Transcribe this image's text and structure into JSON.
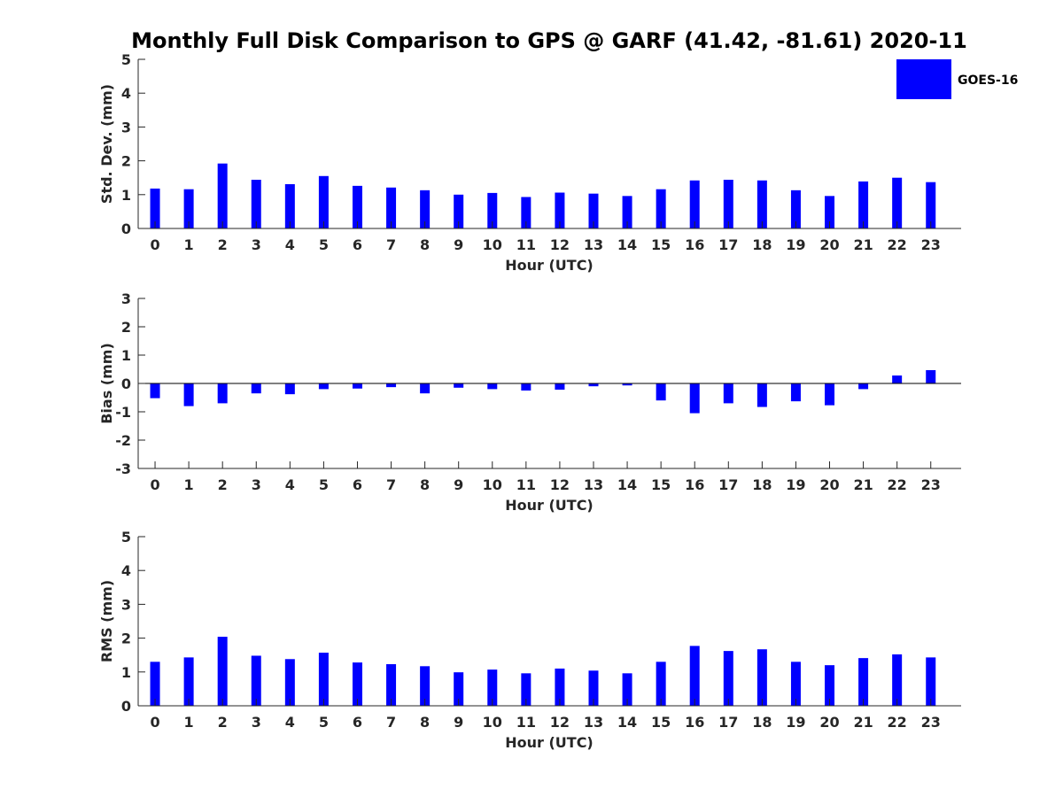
{
  "title": "Monthly Full Disk Comparison to GPS @ GARF (41.42, -81.61) 2020-11",
  "legend": {
    "label": "GOES-16",
    "color": "#0000ff"
  },
  "chart_data": [
    {
      "type": "bar",
      "title": "",
      "xlabel": "Hour (UTC)",
      "ylabel": "Std. Dev. (mm)",
      "categories": [
        "0",
        "1",
        "2",
        "3",
        "4",
        "5",
        "6",
        "7",
        "8",
        "9",
        "10",
        "11",
        "12",
        "13",
        "14",
        "15",
        "16",
        "17",
        "18",
        "19",
        "20",
        "21",
        "22",
        "23"
      ],
      "ylim": [
        0,
        5
      ],
      "yticks": [
        0,
        1,
        2,
        3,
        4,
        5
      ],
      "series": [
        {
          "name": "GOES-16",
          "color": "#0000ff",
          "values": [
            1.18,
            1.16,
            1.92,
            1.44,
            1.31,
            1.55,
            1.26,
            1.21,
            1.13,
            1.0,
            1.05,
            0.93,
            1.06,
            1.03,
            0.96,
            1.16,
            1.42,
            1.44,
            1.42,
            1.13,
            0.96,
            1.39,
            1.5,
            1.37
          ]
        }
      ]
    },
    {
      "type": "bar",
      "title": "",
      "xlabel": "Hour (UTC)",
      "ylabel": "Bias (mm)",
      "categories": [
        "0",
        "1",
        "2",
        "3",
        "4",
        "5",
        "6",
        "7",
        "8",
        "9",
        "10",
        "11",
        "12",
        "13",
        "14",
        "15",
        "16",
        "17",
        "18",
        "19",
        "20",
        "21",
        "22",
        "23"
      ],
      "ylim": [
        -3,
        3
      ],
      "yticks": [
        -3,
        -2,
        -1,
        0,
        1,
        2,
        3
      ],
      "series": [
        {
          "name": "GOES-16",
          "color": "#0000ff",
          "values": [
            -0.52,
            -0.8,
            -0.7,
            -0.35,
            -0.38,
            -0.2,
            -0.18,
            -0.13,
            -0.35,
            -0.15,
            -0.2,
            -0.25,
            -0.22,
            -0.1,
            -0.07,
            -0.6,
            -1.05,
            -0.7,
            -0.83,
            -0.63,
            -0.77,
            -0.2,
            0.28,
            0.47
          ]
        }
      ]
    },
    {
      "type": "bar",
      "title": "",
      "xlabel": "Hour (UTC)",
      "ylabel": "RMS (mm)",
      "categories": [
        "0",
        "1",
        "2",
        "3",
        "4",
        "5",
        "6",
        "7",
        "8",
        "9",
        "10",
        "11",
        "12",
        "13",
        "14",
        "15",
        "16",
        "17",
        "18",
        "19",
        "20",
        "21",
        "22",
        "23"
      ],
      "ylim": [
        0,
        5
      ],
      "yticks": [
        0,
        1,
        2,
        3,
        4,
        5
      ],
      "series": [
        {
          "name": "GOES-16",
          "color": "#0000ff",
          "values": [
            1.3,
            1.43,
            2.04,
            1.48,
            1.38,
            1.57,
            1.28,
            1.23,
            1.17,
            0.99,
            1.07,
            0.96,
            1.1,
            1.04,
            0.96,
            1.3,
            1.77,
            1.62,
            1.67,
            1.3,
            1.2,
            1.41,
            1.52,
            1.43
          ]
        }
      ]
    }
  ]
}
